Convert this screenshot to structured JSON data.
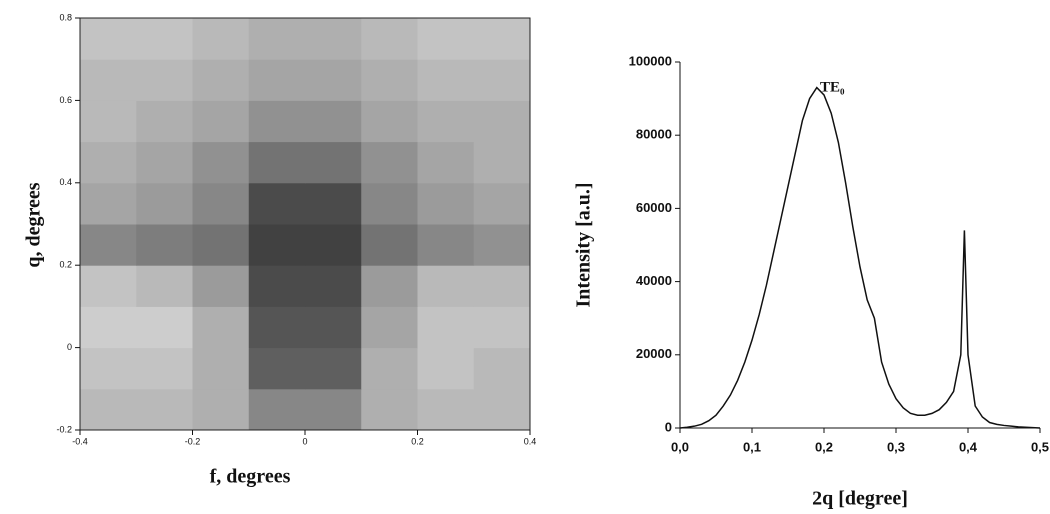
{
  "chart_data": [
    {
      "type": "heatmap",
      "xlabel": "f, degrees",
      "ylabel": "q, degrees",
      "xbins": [
        -0.4,
        -0.3,
        -0.2,
        -0.1,
        0,
        0.1,
        0.2,
        0.3,
        0.4
      ],
      "ybins": [
        -0.2,
        -0.1,
        0,
        0.1,
        0.2,
        0.3,
        0.4,
        0.5,
        0.6,
        0.7,
        0.8
      ],
      "z": [
        [
          0.35,
          0.35,
          0.4,
          0.6,
          0.6,
          0.4,
          0.35,
          0.35
        ],
        [
          0.3,
          0.3,
          0.4,
          0.8,
          0.8,
          0.4,
          0.3,
          0.35
        ],
        [
          0.25,
          0.25,
          0.4,
          0.85,
          0.85,
          0.45,
          0.3,
          0.3
        ],
        [
          0.3,
          0.35,
          0.5,
          0.9,
          0.9,
          0.5,
          0.35,
          0.35
        ],
        [
          0.6,
          0.65,
          0.7,
          0.95,
          0.95,
          0.7,
          0.6,
          0.55
        ],
        [
          0.45,
          0.5,
          0.6,
          0.9,
          0.9,
          0.6,
          0.5,
          0.45
        ],
        [
          0.4,
          0.45,
          0.55,
          0.7,
          0.7,
          0.55,
          0.45,
          0.4
        ],
        [
          0.35,
          0.4,
          0.45,
          0.55,
          0.55,
          0.45,
          0.4,
          0.4
        ],
        [
          0.35,
          0.35,
          0.4,
          0.45,
          0.45,
          0.4,
          0.35,
          0.35
        ],
        [
          0.3,
          0.3,
          0.35,
          0.4,
          0.4,
          0.35,
          0.3,
          0.3
        ]
      ],
      "xlim": [
        -0.4,
        0.4
      ],
      "xticks": [
        -0.4,
        -0.2,
        0,
        0.2,
        0.4
      ],
      "ylim": [
        -0.2,
        0.8
      ],
      "yticks": [
        -0.2,
        0,
        0.2,
        0.4,
        0.6,
        0.8
      ]
    },
    {
      "type": "line",
      "annotation": "TE₀",
      "xlabel": "2q [degree]",
      "ylabel": "Intensity [a.u.]",
      "x": [
        0,
        0.01,
        0.02,
        0.03,
        0.04,
        0.05,
        0.06,
        0.07,
        0.08,
        0.09,
        0.1,
        0.11,
        0.12,
        0.13,
        0.14,
        0.15,
        0.16,
        0.17,
        0.18,
        0.19,
        0.2,
        0.21,
        0.22,
        0.23,
        0.24,
        0.25,
        0.26,
        0.27,
        0.28,
        0.29,
        0.3,
        0.31,
        0.32,
        0.33,
        0.34,
        0.35,
        0.36,
        0.37,
        0.38,
        0.39,
        0.395,
        0.4,
        0.41,
        0.42,
        0.43,
        0.44,
        0.45,
        0.46,
        0.47,
        0.48,
        0.49,
        0.5
      ],
      "series": [
        {
          "color": "#111111",
          "values": [
            0,
            200,
            500,
            1000,
            2000,
            3500,
            6000,
            9000,
            13000,
            18000,
            24000,
            31000,
            39000,
            48000,
            57000,
            66000,
            75000,
            84000,
            90000,
            93000,
            91000,
            86000,
            78000,
            67000,
            55000,
            44000,
            35000,
            30000,
            18000,
            12000,
            8000,
            5500,
            4000,
            3500,
            3500,
            4000,
            5000,
            7000,
            10000,
            20000,
            54000,
            20000,
            6000,
            3000,
            1500,
            1000,
            700,
            500,
            300,
            200,
            100,
            0
          ]
        }
      ],
      "xlim": [
        0,
        0.5
      ],
      "xticks": [
        {
          "value": 0,
          "label": "0,0"
        },
        {
          "value": 0.1,
          "label": "0,1"
        },
        {
          "value": 0.2,
          "label": "0,2"
        },
        {
          "value": 0.3,
          "label": "0,3"
        },
        {
          "value": 0.4,
          "label": "0,4"
        },
        {
          "value": 0.5,
          "label": "0,5"
        }
      ],
      "ylim": [
        0,
        100000
      ],
      "yticks": [
        0,
        20000,
        40000,
        60000,
        80000,
        100000
      ]
    }
  ]
}
